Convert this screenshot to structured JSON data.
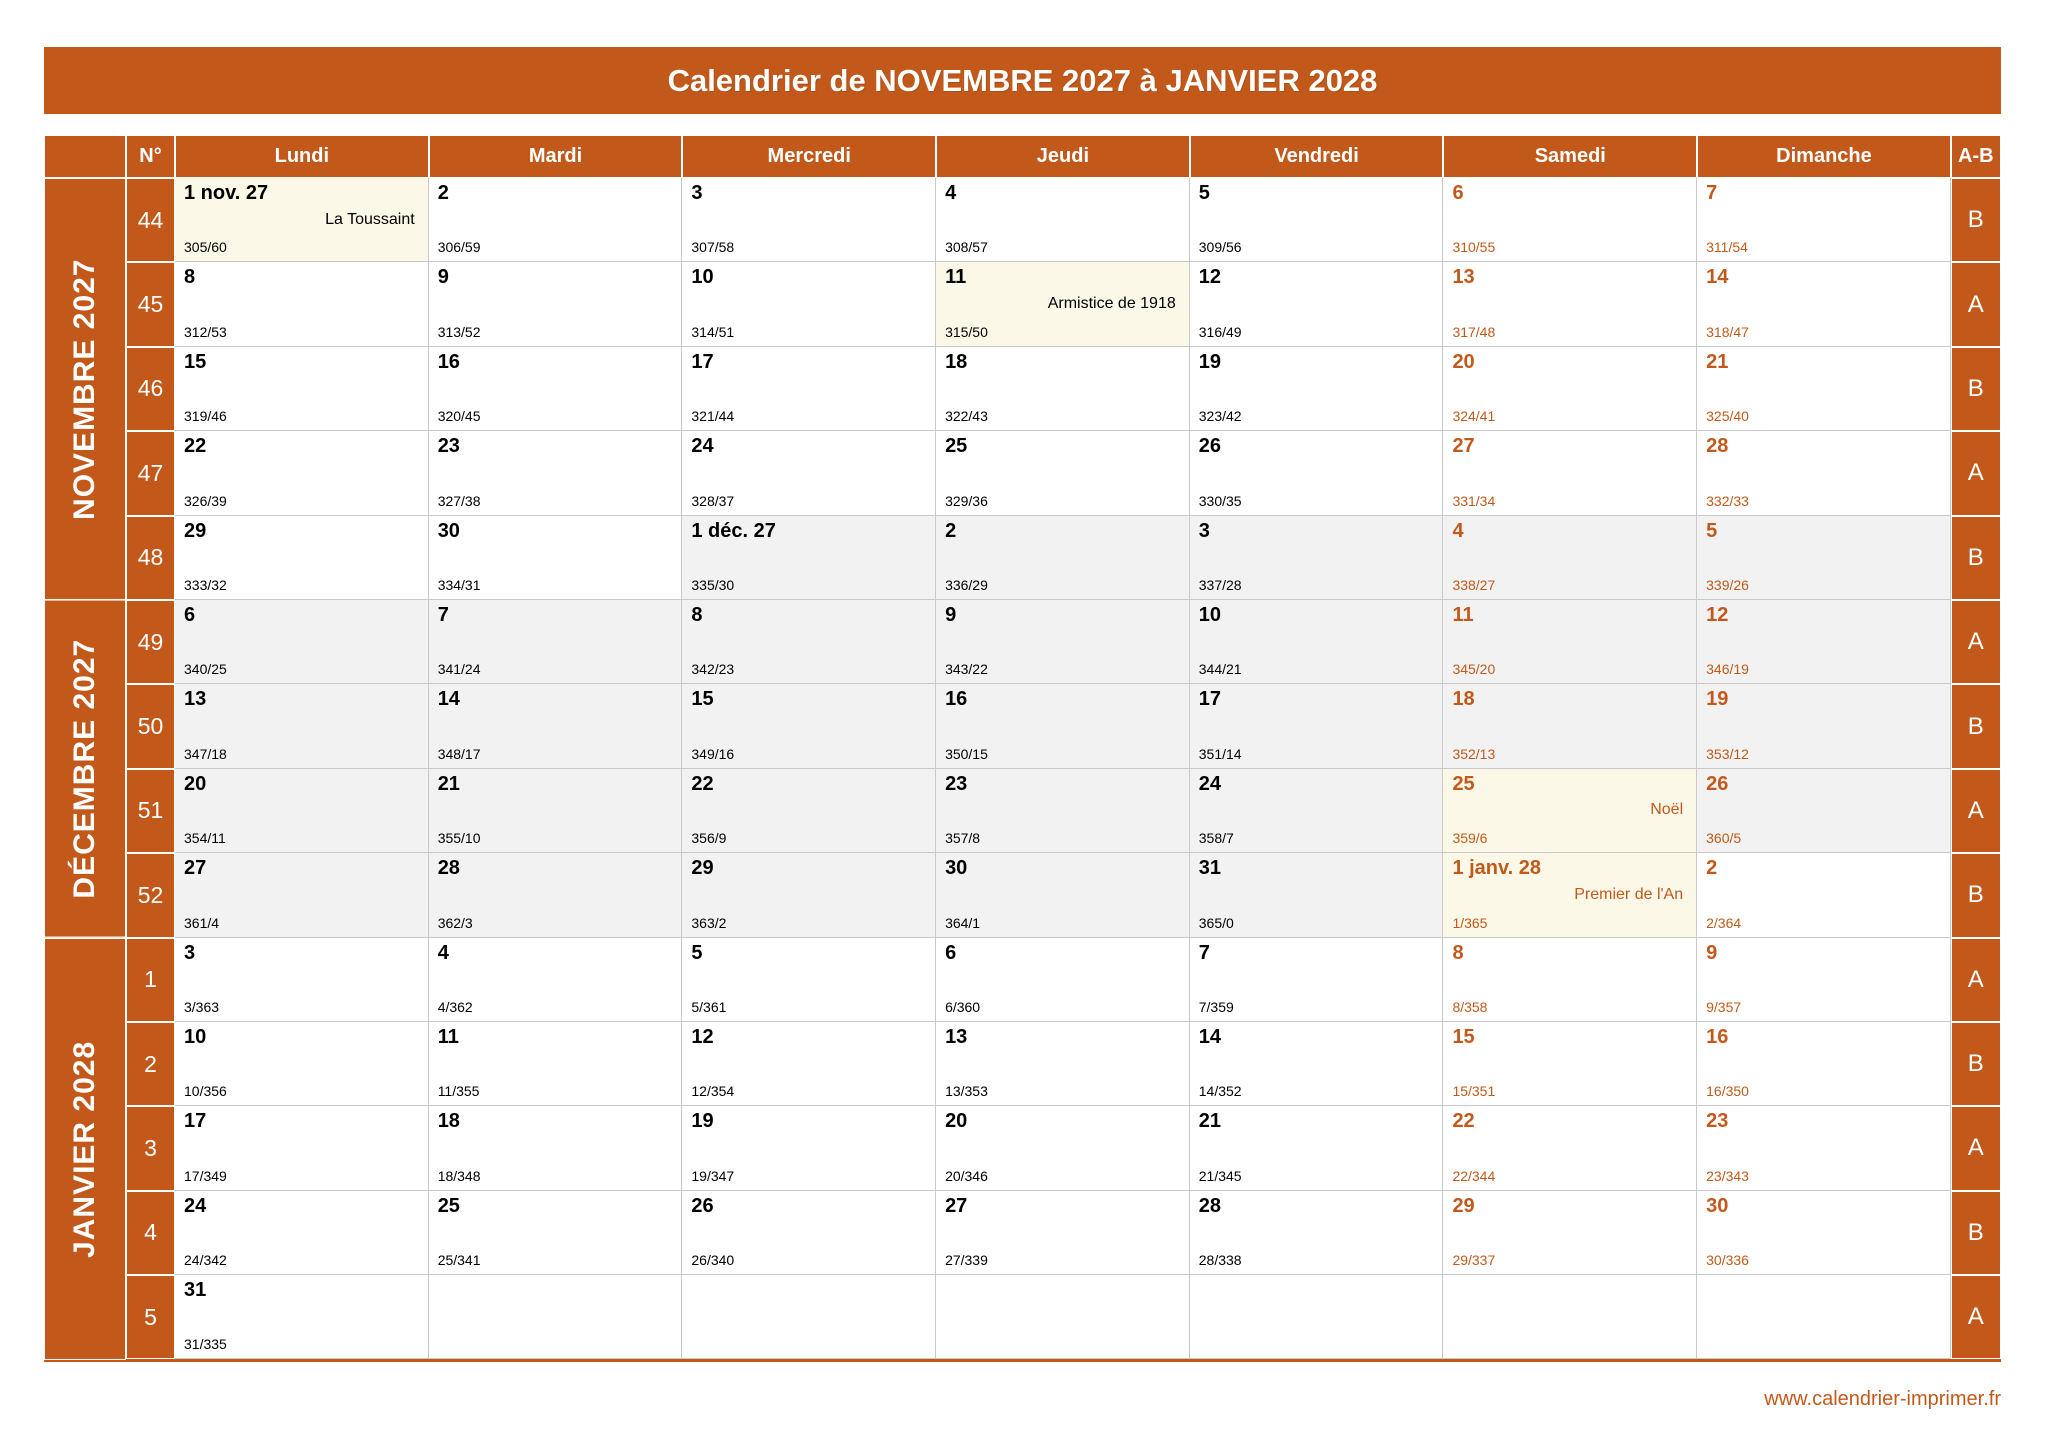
{
  "title": "Calendrier de NOVEMBRE 2027 à JANVIER 2028",
  "footer": {
    "url": "www.calendrier-imprimer.fr"
  },
  "colors": {
    "accent": "#c2591b",
    "holiday_bg": "#fcf8e7",
    "alt_month_bg": "#f2f2f2",
    "grid": "#c9c9c9"
  },
  "header": {
    "week_col": "N°",
    "days": [
      "Lundi",
      "Mardi",
      "Mercredi",
      "Jeudi",
      "Vendredi",
      "Samedi",
      "Dimanche"
    ],
    "ab_label": "A-B"
  },
  "month_bands": [
    {
      "label": "NOVEMBRE 2027",
      "rows": 5
    },
    {
      "label": "DÉCEMBRE 2027",
      "rows": 4
    },
    {
      "label": "JANVIER 2028",
      "rows": 5
    }
  ],
  "weeks": [
    {
      "num": "44",
      "ab": "B",
      "days": [
        {
          "d": "1 nov. 27",
          "c": "305/60",
          "h": "La Toussaint",
          "hol": true
        },
        {
          "d": "2",
          "c": "306/59"
        },
        {
          "d": "3",
          "c": "307/58"
        },
        {
          "d": "4",
          "c": "308/57"
        },
        {
          "d": "5",
          "c": "309/56"
        },
        {
          "d": "6",
          "c": "310/55"
        },
        {
          "d": "7",
          "c": "311/54"
        }
      ]
    },
    {
      "num": "45",
      "ab": "A",
      "days": [
        {
          "d": "8",
          "c": "312/53"
        },
        {
          "d": "9",
          "c": "313/52"
        },
        {
          "d": "10",
          "c": "314/51"
        },
        {
          "d": "11",
          "c": "315/50",
          "h": "Armistice de 1918",
          "hol": true
        },
        {
          "d": "12",
          "c": "316/49"
        },
        {
          "d": "13",
          "c": "317/48"
        },
        {
          "d": "14",
          "c": "318/47"
        }
      ]
    },
    {
      "num": "46",
      "ab": "B",
      "days": [
        {
          "d": "15",
          "c": "319/46"
        },
        {
          "d": "16",
          "c": "320/45"
        },
        {
          "d": "17",
          "c": "321/44"
        },
        {
          "d": "18",
          "c": "322/43"
        },
        {
          "d": "19",
          "c": "323/42"
        },
        {
          "d": "20",
          "c": "324/41"
        },
        {
          "d": "21",
          "c": "325/40"
        }
      ]
    },
    {
      "num": "47",
      "ab": "A",
      "days": [
        {
          "d": "22",
          "c": "326/39"
        },
        {
          "d": "23",
          "c": "327/38"
        },
        {
          "d": "24",
          "c": "328/37"
        },
        {
          "d": "25",
          "c": "329/36"
        },
        {
          "d": "26",
          "c": "330/35"
        },
        {
          "d": "27",
          "c": "331/34"
        },
        {
          "d": "28",
          "c": "332/33"
        }
      ]
    },
    {
      "num": "48",
      "ab": "B",
      "days": [
        {
          "d": "29",
          "c": "333/32"
        },
        {
          "d": "30",
          "c": "334/31"
        },
        {
          "d": "1 déc. 27",
          "c": "335/30",
          "gray": true
        },
        {
          "d": "2",
          "c": "336/29",
          "gray": true
        },
        {
          "d": "3",
          "c": "337/28",
          "gray": true
        },
        {
          "d": "4",
          "c": "338/27",
          "gray": true
        },
        {
          "d": "5",
          "c": "339/26",
          "gray": true
        }
      ]
    },
    {
      "num": "49",
      "ab": "A",
      "days": [
        {
          "d": "6",
          "c": "340/25",
          "gray": true
        },
        {
          "d": "7",
          "c": "341/24",
          "gray": true
        },
        {
          "d": "8",
          "c": "342/23",
          "gray": true
        },
        {
          "d": "9",
          "c": "343/22",
          "gray": true
        },
        {
          "d": "10",
          "c": "344/21",
          "gray": true
        },
        {
          "d": "11",
          "c": "345/20",
          "gray": true
        },
        {
          "d": "12",
          "c": "346/19",
          "gray": true
        }
      ]
    },
    {
      "num": "50",
      "ab": "B",
      "days": [
        {
          "d": "13",
          "c": "347/18",
          "gray": true
        },
        {
          "d": "14",
          "c": "348/17",
          "gray": true
        },
        {
          "d": "15",
          "c": "349/16",
          "gray": true
        },
        {
          "d": "16",
          "c": "350/15",
          "gray": true
        },
        {
          "d": "17",
          "c": "351/14",
          "gray": true
        },
        {
          "d": "18",
          "c": "352/13",
          "gray": true
        },
        {
          "d": "19",
          "c": "353/12",
          "gray": true
        }
      ]
    },
    {
      "num": "51",
      "ab": "A",
      "days": [
        {
          "d": "20",
          "c": "354/11",
          "gray": true
        },
        {
          "d": "21",
          "c": "355/10",
          "gray": true
        },
        {
          "d": "22",
          "c": "356/9",
          "gray": true
        },
        {
          "d": "23",
          "c": "357/8",
          "gray": true
        },
        {
          "d": "24",
          "c": "358/7",
          "gray": true
        },
        {
          "d": "25",
          "c": "359/6",
          "h": "Noël",
          "hol": true
        },
        {
          "d": "26",
          "c": "360/5",
          "gray": true
        }
      ]
    },
    {
      "num": "52",
      "ab": "B",
      "days": [
        {
          "d": "27",
          "c": "361/4",
          "gray": true
        },
        {
          "d": "28",
          "c": "362/3",
          "gray": true
        },
        {
          "d": "29",
          "c": "363/2",
          "gray": true
        },
        {
          "d": "30",
          "c": "364/1",
          "gray": true
        },
        {
          "d": "31",
          "c": "365/0",
          "gray": true
        },
        {
          "d": "1 janv. 28",
          "c": "1/365",
          "h": "Premier de l'An",
          "hol": true
        },
        {
          "d": "2",
          "c": "2/364"
        }
      ]
    },
    {
      "num": "1",
      "ab": "A",
      "days": [
        {
          "d": "3",
          "c": "3/363"
        },
        {
          "d": "4",
          "c": "4/362"
        },
        {
          "d": "5",
          "c": "5/361"
        },
        {
          "d": "6",
          "c": "6/360"
        },
        {
          "d": "7",
          "c": "7/359"
        },
        {
          "d": "8",
          "c": "8/358"
        },
        {
          "d": "9",
          "c": "9/357"
        }
      ]
    },
    {
      "num": "2",
      "ab": "B",
      "days": [
        {
          "d": "10",
          "c": "10/356"
        },
        {
          "d": "11",
          "c": "11/355"
        },
        {
          "d": "12",
          "c": "12/354"
        },
        {
          "d": "13",
          "c": "13/353"
        },
        {
          "d": "14",
          "c": "14/352"
        },
        {
          "d": "15",
          "c": "15/351"
        },
        {
          "d": "16",
          "c": "16/350"
        }
      ]
    },
    {
      "num": "3",
      "ab": "A",
      "days": [
        {
          "d": "17",
          "c": "17/349"
        },
        {
          "d": "18",
          "c": "18/348"
        },
        {
          "d": "19",
          "c": "19/347"
        },
        {
          "d": "20",
          "c": "20/346"
        },
        {
          "d": "21",
          "c": "21/345"
        },
        {
          "d": "22",
          "c": "22/344"
        },
        {
          "d": "23",
          "c": "23/343"
        }
      ]
    },
    {
      "num": "4",
      "ab": "B",
      "days": [
        {
          "d": "24",
          "c": "24/342"
        },
        {
          "d": "25",
          "c": "25/341"
        },
        {
          "d": "26",
          "c": "26/340"
        },
        {
          "d": "27",
          "c": "27/339"
        },
        {
          "d": "28",
          "c": "28/338"
        },
        {
          "d": "29",
          "c": "29/337"
        },
        {
          "d": "30",
          "c": "30/336"
        }
      ]
    },
    {
      "num": "5",
      "ab": "A",
      "days": [
        {
          "d": "31",
          "c": "31/335"
        },
        {},
        {},
        {},
        {},
        {},
        {}
      ]
    }
  ]
}
